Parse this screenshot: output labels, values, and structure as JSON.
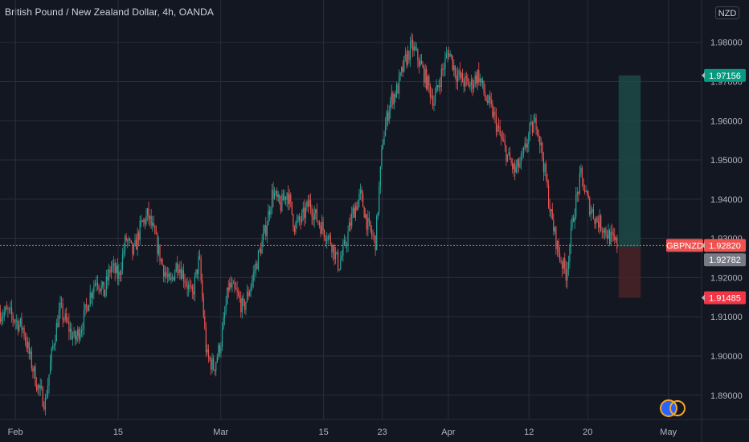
{
  "header": {
    "title": "British Pound / New Zealand Dollar, 4h, OANDA",
    "currency_label": "NZD"
  },
  "colors": {
    "background": "#131722",
    "up": "#26a69a",
    "down": "#ef5350",
    "grid": "#2a2e39",
    "profit_zone": "#1d4a46",
    "loss_zone": "#4a2327",
    "price_line": "#ef5350",
    "target_badge": "#089981",
    "stop_badge": "#f23645",
    "entry_badge": "#787b86"
  },
  "icons": {
    "watermark": "tradingview-logo-icon"
  },
  "chart_data": {
    "type": "candlestick",
    "title": "British Pound / New Zealand Dollar, 4h, OANDA",
    "ylim": [
      1.8838,
      1.9908
    ],
    "y_ticks": [
      "1.98000",
      "1.97000",
      "1.96000",
      "1.95000",
      "1.94000",
      "1.93000",
      "1.92000",
      "1.91000",
      "1.90000",
      "1.89000"
    ],
    "x_ticks": [
      {
        "label": "Feb",
        "date": "2023-02-01"
      },
      {
        "label": "15",
        "date": "2023-02-15"
      },
      {
        "label": "Mar",
        "date": "2023-03-01"
      },
      {
        "label": "15",
        "date": "2023-03-15"
      },
      {
        "label": "23",
        "date": "2023-03-23"
      },
      {
        "label": "Apr",
        "date": "2023-04-01"
      },
      {
        "label": "12",
        "date": "2023-04-12"
      },
      {
        "label": "20",
        "date": "2023-04-20"
      },
      {
        "label": "May",
        "date": "2023-05-01"
      }
    ],
    "grid": true,
    "price_path": [
      [
        "2023-01-31",
        1.911
      ],
      [
        "2023-02-02",
        1.907
      ],
      [
        "2023-02-03",
        1.899
      ],
      [
        "2023-02-04",
        1.892
      ],
      [
        "2023-02-05",
        1.888
      ],
      [
        "2023-02-06",
        1.902
      ],
      [
        "2023-02-07",
        1.912
      ],
      [
        "2023-02-08",
        1.908
      ],
      [
        "2023-02-09",
        1.904
      ],
      [
        "2023-02-10",
        1.908
      ],
      [
        "2023-02-11",
        1.915
      ],
      [
        "2023-02-12",
        1.92
      ],
      [
        "2023-02-13",
        1.916
      ],
      [
        "2023-02-14",
        1.923
      ],
      [
        "2023-02-15",
        1.92
      ],
      [
        "2023-02-16",
        1.93
      ],
      [
        "2023-02-17",
        1.926
      ],
      [
        "2023-02-18",
        1.933
      ],
      [
        "2023-02-19",
        1.936
      ],
      [
        "2023-02-20",
        1.93
      ],
      [
        "2023-02-21",
        1.923
      ],
      [
        "2023-02-22",
        1.918
      ],
      [
        "2023-02-23",
        1.924
      ],
      [
        "2023-02-24",
        1.92
      ],
      [
        "2023-02-25",
        1.915
      ],
      [
        "2023-02-26",
        1.925
      ],
      [
        "2023-02-27",
        1.9
      ],
      [
        "2023-02-28",
        1.897
      ],
      [
        "2023-03-01",
        1.904
      ],
      [
        "2023-03-02",
        1.918
      ],
      [
        "2023-03-03",
        1.916
      ],
      [
        "2023-03-04",
        1.912
      ],
      [
        "2023-03-05",
        1.918
      ],
      [
        "2023-03-06",
        1.925
      ],
      [
        "2023-03-07",
        1.932
      ],
      [
        "2023-03-08",
        1.942
      ],
      [
        "2023-03-09",
        1.938
      ],
      [
        "2023-03-10",
        1.942
      ],
      [
        "2023-03-11",
        1.933
      ],
      [
        "2023-03-12",
        1.935
      ],
      [
        "2023-03-13",
        1.939
      ],
      [
        "2023-03-14",
        1.935
      ],
      [
        "2023-03-15",
        1.932
      ],
      [
        "2023-03-16",
        1.929
      ],
      [
        "2023-03-17",
        1.923
      ],
      [
        "2023-03-18",
        1.929
      ],
      [
        "2023-03-19",
        1.937
      ],
      [
        "2023-03-20",
        1.941
      ],
      [
        "2023-03-21",
        1.933
      ],
      [
        "2023-03-22",
        1.929
      ],
      [
        "2023-03-23",
        1.955
      ],
      [
        "2023-03-24",
        1.965
      ],
      [
        "2023-03-25",
        1.968
      ],
      [
        "2023-03-26",
        1.975
      ],
      [
        "2023-03-27",
        1.979
      ],
      [
        "2023-03-28",
        1.975
      ],
      [
        "2023-03-29",
        1.97
      ],
      [
        "2023-03-30",
        1.965
      ],
      [
        "2023-03-31",
        1.972
      ],
      [
        "2023-04-01",
        1.978
      ],
      [
        "2023-04-02",
        1.972
      ],
      [
        "2023-04-03",
        1.97
      ],
      [
        "2023-04-04",
        1.969
      ],
      [
        "2023-04-05",
        1.972
      ],
      [
        "2023-04-06",
        1.966
      ],
      [
        "2023-04-07",
        1.962
      ],
      [
        "2023-04-08",
        1.956
      ],
      [
        "2023-04-09",
        1.951
      ],
      [
        "2023-04-10",
        1.947
      ],
      [
        "2023-04-11",
        1.95
      ],
      [
        "2023-04-12",
        1.957
      ],
      [
        "2023-04-13",
        1.96
      ],
      [
        "2023-04-14",
        1.948
      ],
      [
        "2023-04-15",
        1.935
      ],
      [
        "2023-04-16",
        1.926
      ],
      [
        "2023-04-17",
        1.921
      ],
      [
        "2023-04-18",
        1.936
      ],
      [
        "2023-04-19",
        1.946
      ],
      [
        "2023-04-20",
        1.939
      ],
      [
        "2023-04-21",
        1.935
      ],
      [
        "2023-04-22",
        1.933
      ],
      [
        "2023-04-23",
        1.93
      ],
      [
        "2023-04-24",
        1.9282
      ]
    ],
    "price_line": {
      "label": "GBPNZD",
      "value": 1.9282
    },
    "position": {
      "entry": 1.92782,
      "target": 1.97156,
      "stop": 1.91485,
      "start_date": "2023-04-24",
      "end_date": "2023-04-27",
      "entry_label": "1.92782",
      "target_label": "1.97156",
      "stop_label": "1.91485",
      "price_label": "1.92820"
    }
  }
}
